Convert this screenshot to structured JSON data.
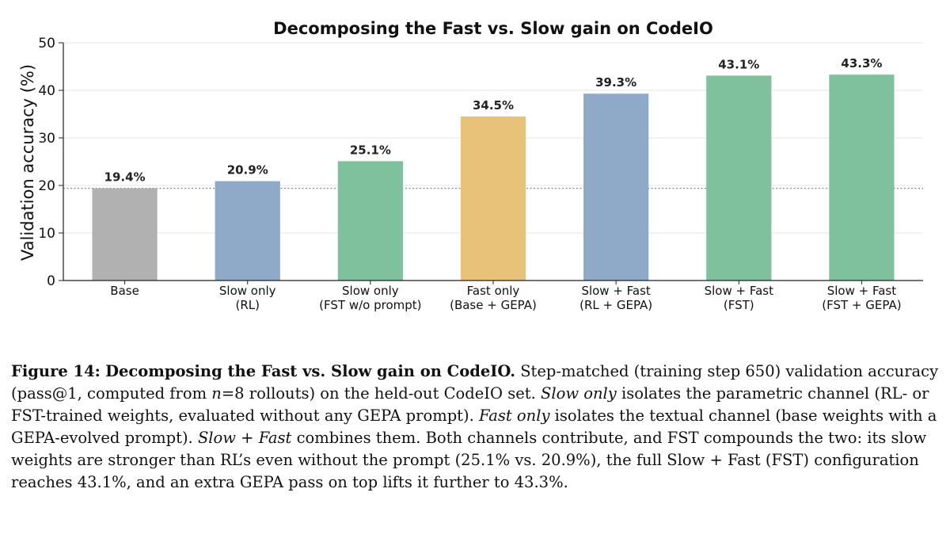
{
  "chart_data": {
    "type": "bar",
    "title": "Decomposing the Fast vs. Slow gain on CodeIO",
    "xlabel": "",
    "ylabel": "Validation accuracy (%)",
    "ylim": [
      0,
      50
    ],
    "yticks": [
      0,
      10,
      20,
      30,
      40,
      50
    ],
    "grid": true,
    "categories": [
      [
        "Base"
      ],
      [
        "Slow only",
        "(RL)"
      ],
      [
        "Slow only",
        "(FST w/o prompt)"
      ],
      [
        "Fast only",
        "(Base + GEPA)"
      ],
      [
        "Slow + Fast",
        "(RL + GEPA)"
      ],
      [
        "Slow + Fast",
        "(FST)"
      ],
      [
        "Slow + Fast",
        "(FST + GEPA)"
      ]
    ],
    "values": [
      19.4,
      20.9,
      25.1,
      34.5,
      39.3,
      43.1,
      43.3
    ],
    "value_labels": [
      "19.4%",
      "20.9%",
      "25.1%",
      "34.5%",
      "39.3%",
      "43.1%",
      "43.3%"
    ],
    "colors": [
      "#b1b1b1",
      "#8fa9c9",
      "#7fc19c",
      "#e8c278",
      "#8fa9c9",
      "#7fc19c",
      "#7fc19c"
    ],
    "reference_line": 19.4
  },
  "caption": {
    "label": "Figure 14:",
    "bold": "Decomposing the Fast vs. Slow gain on CodeIO.",
    "p1": " Step-matched (training step 650) validation accuracy (pass@1, computed from ",
    "n_var": "n",
    "p2": "=8 rollouts) on the held-out CodeIO set. ",
    "i1": "Slow only",
    "p3": " isolates the parametric channel (RL- or FST-trained weights, evaluated without any GEPA prompt). ",
    "i2": "Fast only",
    "p4": " isolates the textual channel (base weights with a GEPA-evolved prompt). ",
    "i3": "Slow + Fast",
    "p5": " combines them. Both channels contribute, and FST compounds the two: its slow weights are stronger than RL’s even without the prompt (25.1% vs. 20.9%), the full Slow + Fast (FST) configuration reaches 43.1%, and an extra GEPA pass on top lifts it further to 43.3%."
  }
}
